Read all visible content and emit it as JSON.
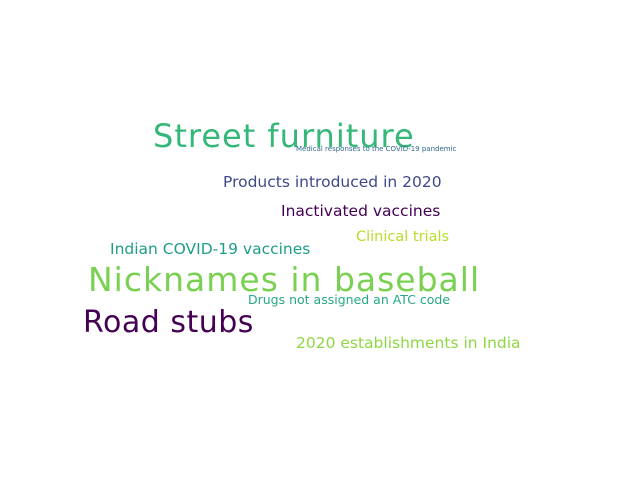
{
  "word_cloud": {
    "words": [
      {
        "text": "Street furniture",
        "color": "#35b779"
      },
      {
        "text": "Medical responses to the COVID-19 pandemic",
        "color": "#31688e"
      },
      {
        "text": "Products introduced in 2020",
        "color": "#3e4989"
      },
      {
        "text": "Inactivated vaccines",
        "color": "#440154"
      },
      {
        "text": "Clinical trials",
        "color": "#b5de2b"
      },
      {
        "text": "Indian COVID-19 vaccines",
        "color": "#1f9e89"
      },
      {
        "text": "Nicknames in baseball",
        "color": "#7ad151"
      },
      {
        "text": "Drugs not assigned an ATC code",
        "color": "#26a784"
      },
      {
        "text": "Road stubs",
        "color": "#440154"
      },
      {
        "text": "2020 establishments in India",
        "color": "#8fd744"
      }
    ]
  }
}
